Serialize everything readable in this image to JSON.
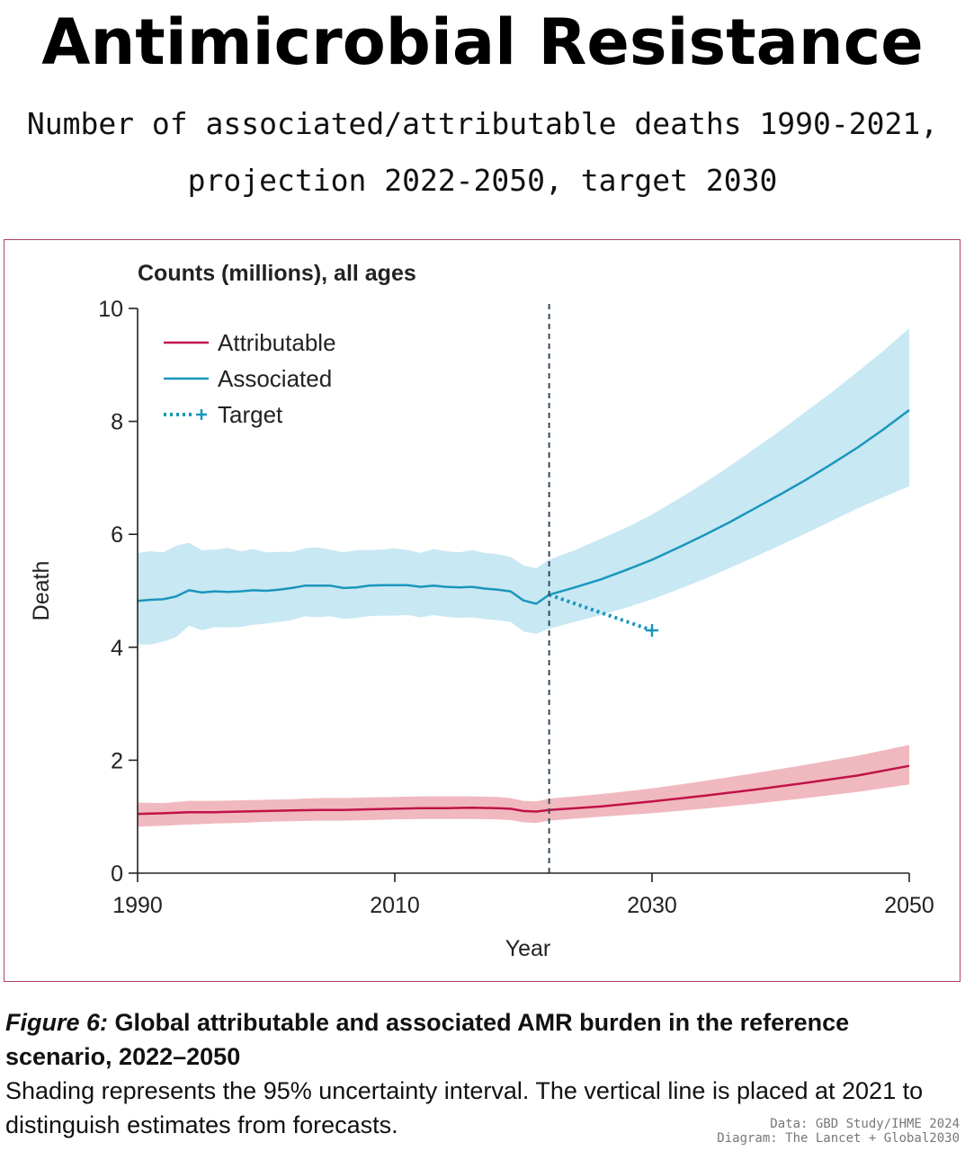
{
  "header": {
    "title": "Antimicrobial Resistance",
    "subtitle_line1": "Number of associated/attributable deaths 1990-2021,",
    "subtitle_line2": "projection 2022-2050, target 2030"
  },
  "chart_data": {
    "type": "line",
    "title": "Counts (millions), all ages",
    "xlabel": "Year",
    "ylabel": "Death",
    "xlim": [
      1990,
      2050
    ],
    "ylim": [
      0,
      10
    ],
    "xticks": [
      1990,
      2010,
      2030,
      2050
    ],
    "yticks": [
      0,
      2,
      4,
      6,
      8,
      10
    ],
    "grid": false,
    "legend_position": "top-left",
    "forecast_divider_year": 2021,
    "series": [
      {
        "name": "Attributable",
        "color": "#c0134a",
        "band_color": "#f0b9bf",
        "points": [
          [
            1990,
            1.05
          ],
          [
            1992,
            1.06
          ],
          [
            1994,
            1.08
          ],
          [
            1996,
            1.08
          ],
          [
            1998,
            1.09
          ],
          [
            2000,
            1.1
          ],
          [
            2002,
            1.11
          ],
          [
            2004,
            1.12
          ],
          [
            2006,
            1.12
          ],
          [
            2008,
            1.13
          ],
          [
            2010,
            1.14
          ],
          [
            2012,
            1.15
          ],
          [
            2014,
            1.15
          ],
          [
            2016,
            1.16
          ],
          [
            2018,
            1.15
          ],
          [
            2019,
            1.14
          ],
          [
            2020,
            1.1
          ],
          [
            2021,
            1.09
          ],
          [
            2022,
            1.12
          ],
          [
            2026,
            1.18
          ],
          [
            2030,
            1.27
          ],
          [
            2034,
            1.37
          ],
          [
            2038,
            1.48
          ],
          [
            2042,
            1.6
          ],
          [
            2046,
            1.73
          ],
          [
            2050,
            1.9
          ]
        ],
        "lower": [
          [
            1990,
            0.82
          ],
          [
            1992,
            0.84
          ],
          [
            1994,
            0.86
          ],
          [
            1996,
            0.88
          ],
          [
            1998,
            0.89
          ],
          [
            2000,
            0.91
          ],
          [
            2002,
            0.92
          ],
          [
            2004,
            0.93
          ],
          [
            2006,
            0.93
          ],
          [
            2008,
            0.94
          ],
          [
            2010,
            0.95
          ],
          [
            2012,
            0.96
          ],
          [
            2014,
            0.96
          ],
          [
            2016,
            0.96
          ],
          [
            2018,
            0.95
          ],
          [
            2019,
            0.94
          ],
          [
            2020,
            0.9
          ],
          [
            2021,
            0.89
          ],
          [
            2022,
            0.93
          ],
          [
            2026,
            1.0
          ],
          [
            2030,
            1.06
          ],
          [
            2034,
            1.14
          ],
          [
            2038,
            1.23
          ],
          [
            2042,
            1.33
          ],
          [
            2046,
            1.44
          ],
          [
            2050,
            1.57
          ]
        ],
        "upper": [
          [
            1990,
            1.25
          ],
          [
            1992,
            1.24
          ],
          [
            1994,
            1.28
          ],
          [
            1996,
            1.28
          ],
          [
            1998,
            1.29
          ],
          [
            2000,
            1.3
          ],
          [
            2002,
            1.31
          ],
          [
            2004,
            1.33
          ],
          [
            2006,
            1.33
          ],
          [
            2008,
            1.34
          ],
          [
            2010,
            1.35
          ],
          [
            2012,
            1.36
          ],
          [
            2014,
            1.36
          ],
          [
            2016,
            1.36
          ],
          [
            2018,
            1.35
          ],
          [
            2019,
            1.33
          ],
          [
            2020,
            1.28
          ],
          [
            2021,
            1.27
          ],
          [
            2022,
            1.32
          ],
          [
            2026,
            1.4
          ],
          [
            2030,
            1.5
          ],
          [
            2034,
            1.63
          ],
          [
            2038,
            1.77
          ],
          [
            2042,
            1.92
          ],
          [
            2046,
            2.08
          ],
          [
            2050,
            2.27
          ]
        ]
      },
      {
        "name": "Associated",
        "color": "#1a96bd",
        "band_color": "#c8e8f3",
        "points": [
          [
            1990,
            4.82
          ],
          [
            1991,
            4.84
          ],
          [
            1992,
            4.85
          ],
          [
            1993,
            4.9
          ],
          [
            1994,
            5.01
          ],
          [
            1995,
            4.97
          ],
          [
            1996,
            4.99
          ],
          [
            1997,
            4.98
          ],
          [
            1998,
            4.99
          ],
          [
            1999,
            5.01
          ],
          [
            2000,
            5.0
          ],
          [
            2001,
            5.02
          ],
          [
            2002,
            5.05
          ],
          [
            2003,
            5.09
          ],
          [
            2004,
            5.09
          ],
          [
            2005,
            5.09
          ],
          [
            2006,
            5.05
          ],
          [
            2007,
            5.06
          ],
          [
            2008,
            5.09
          ],
          [
            2009,
            5.1
          ],
          [
            2010,
            5.1
          ],
          [
            2011,
            5.1
          ],
          [
            2012,
            5.07
          ],
          [
            2013,
            5.09
          ],
          [
            2014,
            5.07
          ],
          [
            2015,
            5.06
          ],
          [
            2016,
            5.07
          ],
          [
            2017,
            5.04
          ],
          [
            2018,
            5.02
          ],
          [
            2019,
            4.99
          ],
          [
            2020,
            4.83
          ],
          [
            2021,
            4.77
          ],
          [
            2022,
            4.93
          ],
          [
            2024,
            5.06
          ],
          [
            2026,
            5.2
          ],
          [
            2028,
            5.37
          ],
          [
            2030,
            5.55
          ],
          [
            2032,
            5.76
          ],
          [
            2034,
            5.98
          ],
          [
            2036,
            6.21
          ],
          [
            2038,
            6.46
          ],
          [
            2040,
            6.71
          ],
          [
            2042,
            6.97
          ],
          [
            2044,
            7.25
          ],
          [
            2046,
            7.54
          ],
          [
            2048,
            7.86
          ],
          [
            2050,
            8.2
          ]
        ],
        "lower": [
          [
            1990,
            4.05
          ],
          [
            1991,
            4.05
          ],
          [
            1992,
            4.1
          ],
          [
            1993,
            4.18
          ],
          [
            1994,
            4.38
          ],
          [
            1995,
            4.3
          ],
          [
            1996,
            4.36
          ],
          [
            1997,
            4.35
          ],
          [
            1998,
            4.36
          ],
          [
            1999,
            4.4
          ],
          [
            2000,
            4.42
          ],
          [
            2001,
            4.45
          ],
          [
            2002,
            4.48
          ],
          [
            2003,
            4.55
          ],
          [
            2004,
            4.53
          ],
          [
            2005,
            4.55
          ],
          [
            2006,
            4.5
          ],
          [
            2007,
            4.52
          ],
          [
            2008,
            4.55
          ],
          [
            2009,
            4.56
          ],
          [
            2010,
            4.56
          ],
          [
            2011,
            4.57
          ],
          [
            2012,
            4.53
          ],
          [
            2013,
            4.57
          ],
          [
            2014,
            4.54
          ],
          [
            2015,
            4.52
          ],
          [
            2016,
            4.53
          ],
          [
            2017,
            4.5
          ],
          [
            2018,
            4.48
          ],
          [
            2019,
            4.45
          ],
          [
            2020,
            4.28
          ],
          [
            2021,
            4.24
          ],
          [
            2022,
            4.33
          ],
          [
            2024,
            4.45
          ],
          [
            2026,
            4.57
          ],
          [
            2028,
            4.7
          ],
          [
            2030,
            4.85
          ],
          [
            2032,
            5.02
          ],
          [
            2034,
            5.2
          ],
          [
            2036,
            5.4
          ],
          [
            2038,
            5.6
          ],
          [
            2040,
            5.81
          ],
          [
            2042,
            6.02
          ],
          [
            2044,
            6.24
          ],
          [
            2046,
            6.46
          ],
          [
            2048,
            6.66
          ],
          [
            2050,
            6.85
          ]
        ],
        "upper": [
          [
            1990,
            5.67
          ],
          [
            1991,
            5.7
          ],
          [
            1992,
            5.68
          ],
          [
            1993,
            5.8
          ],
          [
            1994,
            5.85
          ],
          [
            1995,
            5.72
          ],
          [
            1996,
            5.73
          ],
          [
            1997,
            5.76
          ],
          [
            1998,
            5.7
          ],
          [
            1999,
            5.74
          ],
          [
            2000,
            5.68
          ],
          [
            2001,
            5.69
          ],
          [
            2002,
            5.69
          ],
          [
            2003,
            5.75
          ],
          [
            2004,
            5.77
          ],
          [
            2005,
            5.73
          ],
          [
            2006,
            5.68
          ],
          [
            2007,
            5.72
          ],
          [
            2008,
            5.72
          ],
          [
            2009,
            5.73
          ],
          [
            2010,
            5.75
          ],
          [
            2011,
            5.72
          ],
          [
            2012,
            5.67
          ],
          [
            2013,
            5.74
          ],
          [
            2014,
            5.7
          ],
          [
            2015,
            5.68
          ],
          [
            2016,
            5.72
          ],
          [
            2017,
            5.67
          ],
          [
            2018,
            5.65
          ],
          [
            2019,
            5.6
          ],
          [
            2020,
            5.45
          ],
          [
            2021,
            5.4
          ],
          [
            2022,
            5.55
          ],
          [
            2024,
            5.72
          ],
          [
            2026,
            5.92
          ],
          [
            2028,
            6.12
          ],
          [
            2030,
            6.35
          ],
          [
            2032,
            6.62
          ],
          [
            2034,
            6.9
          ],
          [
            2036,
            7.2
          ],
          [
            2038,
            7.52
          ],
          [
            2040,
            7.84
          ],
          [
            2042,
            8.18
          ],
          [
            2044,
            8.52
          ],
          [
            2046,
            8.88
          ],
          [
            2048,
            9.25
          ],
          [
            2050,
            9.65
          ]
        ]
      },
      {
        "name": "Target",
        "color": "#1a96bd",
        "style": "dotted",
        "points": [
          [
            2022,
            4.93
          ],
          [
            2030,
            4.3
          ]
        ],
        "marker": {
          "x": 2030,
          "y": 4.3
        }
      }
    ]
  },
  "caption": {
    "figure_label": "Figure 6:",
    "figure_title": " Global attributable and associated AMR burden in the reference scenario, 2022–2050",
    "description": "Shading represents the 95% uncertainty interval. The vertical line is placed at 2021 to distinguish estimates from forecasts."
  },
  "credits": {
    "data": "Data: GBD Study/IHME 2024",
    "diagram": "Diagram: The Lancet + Global2030"
  }
}
